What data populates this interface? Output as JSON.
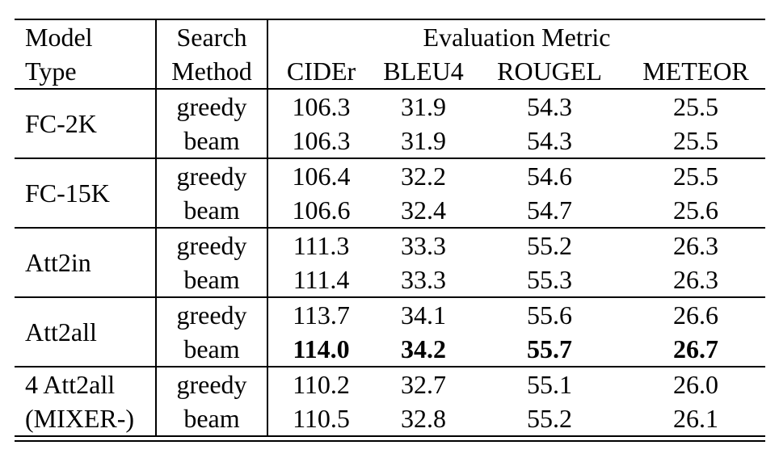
{
  "table": {
    "header": {
      "model_type": "Model\nType",
      "search_method": "Search\nMethod",
      "evaluation_metric": "Evaluation Metric",
      "metrics": [
        "CIDEr",
        "BLEU4",
        "ROUGEL",
        "METEOR"
      ]
    },
    "groups": [
      {
        "model": "FC-2K",
        "rows": [
          {
            "method": "greedy",
            "values": [
              "106.3",
              "31.9",
              "54.3",
              "25.5"
            ]
          },
          {
            "method": "beam",
            "values": [
              "106.3",
              "31.9",
              "54.3",
              "25.5"
            ]
          }
        ]
      },
      {
        "model": "FC-15K",
        "rows": [
          {
            "method": "greedy",
            "values": [
              "106.4",
              "32.2",
              "54.6",
              "25.5"
            ]
          },
          {
            "method": "beam",
            "values": [
              "106.6",
              "32.4",
              "54.7",
              "25.6"
            ]
          }
        ]
      },
      {
        "model": "Att2in",
        "rows": [
          {
            "method": "greedy",
            "values": [
              "111.3",
              "33.3",
              "55.2",
              "26.3"
            ]
          },
          {
            "method": "beam",
            "values": [
              "111.4",
              "33.3",
              "55.3",
              "26.3"
            ]
          }
        ]
      },
      {
        "model": "Att2all",
        "rows": [
          {
            "method": "greedy",
            "values": [
              "113.7",
              "34.1",
              "55.6",
              "26.6"
            ]
          },
          {
            "method": "beam",
            "values": [
              "114.0",
              "34.2",
              "55.7",
              "26.7"
            ],
            "bold": true
          }
        ]
      },
      {
        "model": "4 Att2all\n(MIXER-)",
        "rows": [
          {
            "method": "greedy",
            "values": [
              "110.2",
              "32.7",
              "55.1",
              "26.0"
            ]
          },
          {
            "method": "beam",
            "values": [
              "110.5",
              "32.8",
              "55.2",
              "26.1"
            ]
          }
        ]
      }
    ],
    "colors": {
      "text": "#000000",
      "background": "#ffffff",
      "rule": "#000000"
    }
  }
}
